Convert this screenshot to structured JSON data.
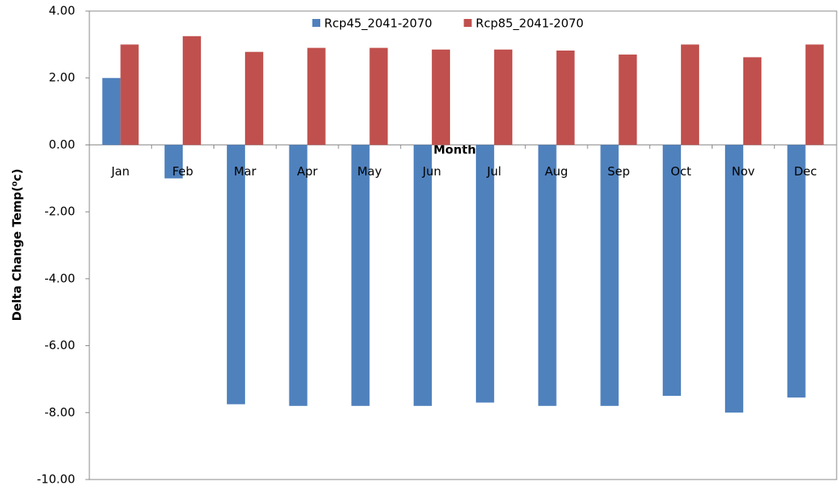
{
  "chart_data": {
    "type": "bar",
    "x_label": "Month",
    "y_label": "Delta Change Temp(⁰c)",
    "categories": [
      "Jan",
      "Feb",
      "Mar",
      "Apr",
      "May",
      "Jun",
      "Jul",
      "Aug",
      "Sep",
      "Oct",
      "Nov",
      "Dec"
    ],
    "series": [
      {
        "name": "Rcp45_2041-2070",
        "color": "#4f81bd",
        "values": [
          2.0,
          -1.0,
          -7.75,
          -7.8,
          -7.8,
          -7.8,
          -7.7,
          -7.8,
          -7.8,
          -7.5,
          -8.0,
          -7.55
        ]
      },
      {
        "name": "Rcp85_2041-2070",
        "color": "#c0504d",
        "values": [
          3.0,
          3.25,
          2.78,
          2.9,
          2.9,
          2.85,
          2.85,
          2.82,
          2.7,
          3.0,
          2.62,
          3.0
        ]
      }
    ],
    "ylim": [
      -10,
      4
    ],
    "yticks": [
      {
        "value": 4,
        "label": "4.00"
      },
      {
        "value": 2,
        "label": "2.00"
      },
      {
        "value": 0,
        "label": "0.00"
      },
      {
        "value": -2,
        "label": "-2.00"
      },
      {
        "value": -4,
        "label": "-4.00"
      },
      {
        "value": -6,
        "label": "-6.00"
      },
      {
        "value": -8,
        "label": "-8.00"
      },
      {
        "value": -10,
        "label": "-10.00"
      }
    ],
    "grid": false,
    "legend": "top"
  }
}
